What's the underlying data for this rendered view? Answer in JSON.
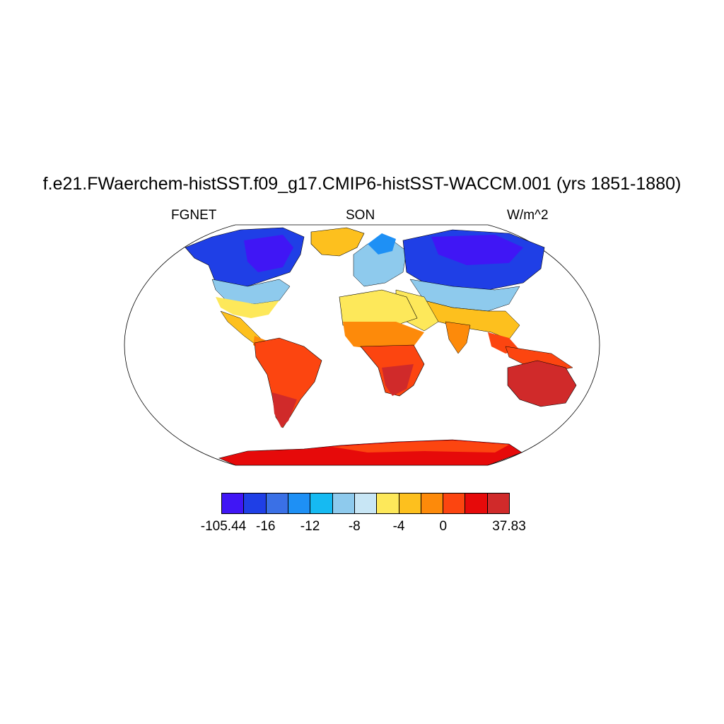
{
  "title": "f.e21.FWaerchem-histSST.f09_g17.CMIP6-histSST-WACCM.001 (yrs 1851-1880)",
  "left_label": "FGNET",
  "center_label": "SON",
  "right_label": "W/m^2",
  "colorbar": {
    "colors": [
      "#4016f5",
      "#1f3fe6",
      "#3a70e6",
      "#1e90f5",
      "#16baf2",
      "#8ecaed",
      "#c8e6f5",
      "#fde85a",
      "#fdc01e",
      "#fd8a0a",
      "#fc4510",
      "#e60a0a",
      "#d02a2a"
    ],
    "labels": [
      "-105.44",
      "-16",
      "-12",
      "-8",
      "-4",
      "0",
      "37.83"
    ]
  }
}
